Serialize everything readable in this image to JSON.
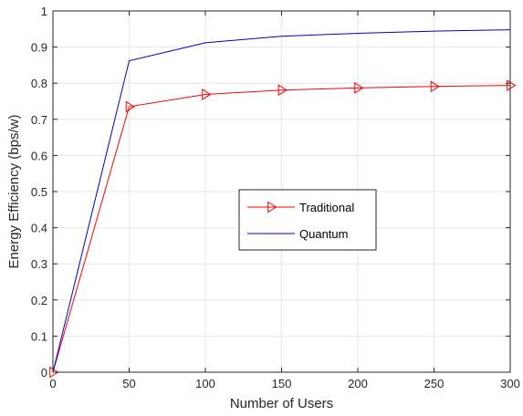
{
  "chart_data": {
    "type": "line",
    "xlabel": "Number of Users",
    "ylabel": "Energy Efficiency (bps/w)",
    "xlim": [
      0,
      300
    ],
    "ylim": [
      0,
      1
    ],
    "x_ticks": [
      0,
      50,
      100,
      150,
      200,
      250,
      300
    ],
    "y_ticks": [
      0,
      0.1,
      0.2,
      0.3,
      0.4,
      0.5,
      0.6,
      0.7,
      0.8,
      0.9,
      1
    ],
    "x_tick_labels": [
      "0",
      "50",
      "100",
      "150",
      "200",
      "250",
      "300"
    ],
    "y_tick_labels": [
      "0",
      "0.1",
      "0.2",
      "0.3",
      "0.4",
      "0.5",
      "0.6",
      "0.7",
      "0.8",
      "0.9",
      "1"
    ],
    "grid": true,
    "legend_position": "center-right",
    "x": [
      0,
      50,
      100,
      150,
      200,
      250,
      300
    ],
    "series": [
      {
        "name": "Traditional",
        "color": "#ff0000",
        "marker": "triangle-right",
        "values": [
          0,
          0.735,
          0.769,
          0.781,
          0.787,
          0.791,
          0.794
        ]
      },
      {
        "name": "Quantum",
        "color": "#0000c8",
        "marker": "none",
        "values": [
          0,
          0.862,
          0.912,
          0.93,
          0.938,
          0.944,
          0.948
        ]
      }
    ]
  }
}
